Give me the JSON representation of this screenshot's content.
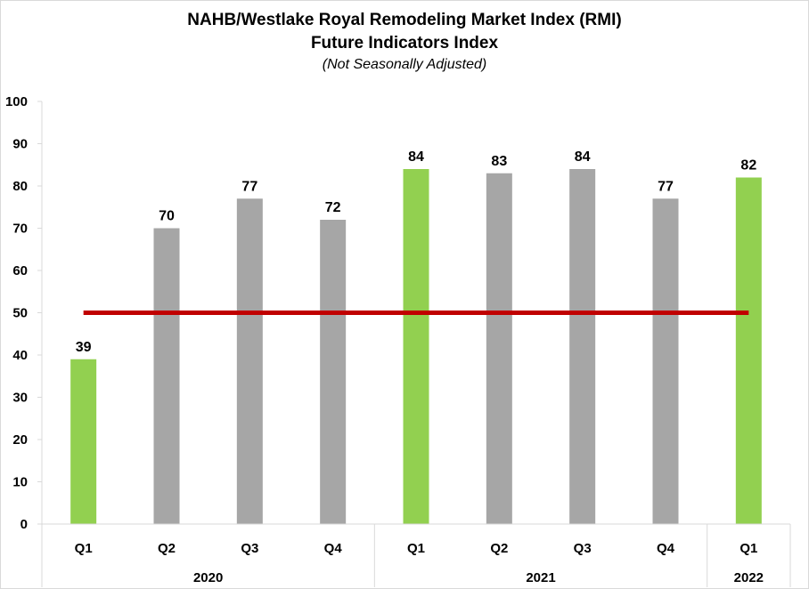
{
  "chart_data": {
    "type": "bar",
    "title": "NAHB/Westlake Royal Remodeling Market Index (RMI)",
    "subtitle": "Future Indicators Index",
    "note": "(Not Seasonally Adjusted)",
    "xlabel": "",
    "ylabel": "",
    "ylim": [
      0,
      100
    ],
    "yticks": [
      0,
      10,
      20,
      30,
      40,
      50,
      60,
      70,
      80,
      90,
      100
    ],
    "categories": [
      "Q1",
      "Q2",
      "Q3",
      "Q4",
      "Q1",
      "Q2",
      "Q3",
      "Q4",
      "Q1"
    ],
    "groups": [
      {
        "label": "2020",
        "count": 4
      },
      {
        "label": "2021",
        "count": 4
      },
      {
        "label": "2022",
        "count": 1
      }
    ],
    "values": [
      39,
      70,
      77,
      72,
      84,
      83,
      84,
      77,
      82
    ],
    "bar_colors": [
      "#92d050",
      "#a6a6a6",
      "#a6a6a6",
      "#a6a6a6",
      "#92d050",
      "#a6a6a6",
      "#a6a6a6",
      "#a6a6a6",
      "#92d050"
    ],
    "reference_line": {
      "value": 50,
      "color": "#c00000"
    },
    "grid": false,
    "data_labels": true
  }
}
